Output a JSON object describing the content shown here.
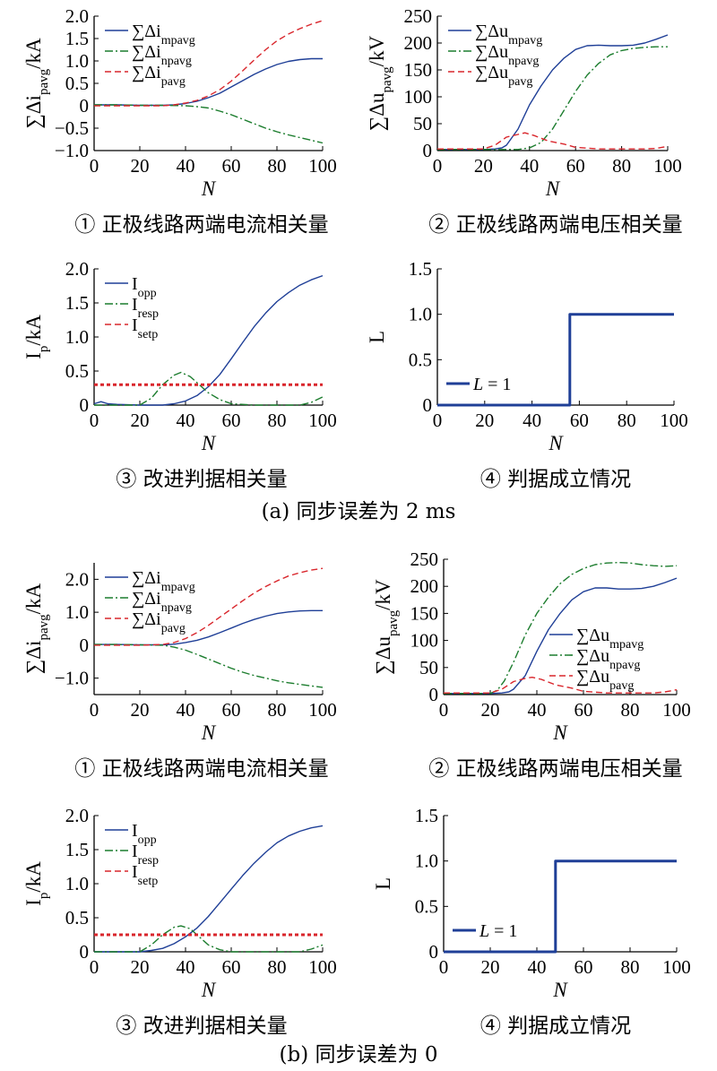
{
  "colors": {
    "blue": "#1f3f97",
    "green": "#1c7d2e",
    "red": "#d9262c",
    "black": "#000000"
  },
  "figure_captions": [
    "(a) 同步误差为 2 ms",
    "(b) 同步误差为 0"
  ],
  "chart_data": [
    {
      "type": "line",
      "id": "a1",
      "caption": "① 正极线路两端电流相关量",
      "xlabel": "N",
      "ylabel": "∑Δi_pavg/kA",
      "xlim": [
        0,
        100
      ],
      "ylim": [
        -1.0,
        2.0
      ],
      "xticks": [
        0,
        20,
        40,
        60,
        80,
        100
      ],
      "yticks": [
        -1.0,
        -0.5,
        0,
        0.5,
        1.0,
        1.5,
        2.0
      ],
      "ytick_labels": [
        "−1.0",
        "−0.5",
        "0",
        "0.5",
        "1.0",
        "1.5",
        "2.0"
      ],
      "legend": "top-left",
      "series": [
        {
          "name": "∑Δi_mpavg",
          "color": "blue",
          "style": "solid",
          "x": [
            0,
            10,
            20,
            30,
            35,
            40,
            45,
            50,
            55,
            60,
            65,
            70,
            75,
            80,
            85,
            90,
            95,
            100
          ],
          "y": [
            0.02,
            0.02,
            0.01,
            0.01,
            0.02,
            0.05,
            0.1,
            0.18,
            0.28,
            0.42,
            0.56,
            0.7,
            0.82,
            0.92,
            0.99,
            1.03,
            1.05,
            1.05
          ]
        },
        {
          "name": "∑Δi_npavg",
          "color": "green",
          "style": "dashdot",
          "x": [
            0,
            10,
            20,
            30,
            40,
            45,
            50,
            55,
            60,
            65,
            70,
            75,
            80,
            85,
            90,
            95,
            100
          ],
          "y": [
            0.02,
            0.02,
            0.01,
            0.01,
            0.0,
            -0.02,
            -0.05,
            -0.12,
            -0.2,
            -0.3,
            -0.4,
            -0.5,
            -0.58,
            -0.65,
            -0.71,
            -0.77,
            -0.83
          ]
        },
        {
          "name": "∑Δi_pavg",
          "color": "red",
          "style": "dashed",
          "x": [
            0,
            10,
            20,
            30,
            35,
            40,
            45,
            50,
            55,
            60,
            65,
            70,
            75,
            80,
            85,
            90,
            95,
            100
          ],
          "y": [
            0.0,
            0.0,
            0.0,
            0.0,
            0.02,
            0.06,
            0.12,
            0.22,
            0.36,
            0.55,
            0.78,
            1.02,
            1.25,
            1.45,
            1.6,
            1.72,
            1.82,
            1.9
          ]
        }
      ]
    },
    {
      "type": "line",
      "id": "a2",
      "caption": "② 正极线路两端电压相关量",
      "xlabel": "N",
      "ylabel": "∑Δu_pavg/kV",
      "xlim": [
        0,
        100
      ],
      "ylim": [
        0,
        250
      ],
      "xticks": [
        0,
        20,
        40,
        60,
        80,
        100
      ],
      "yticks": [
        0,
        50,
        100,
        150,
        200,
        250
      ],
      "ytick_labels": [
        "0",
        "50",
        "100",
        "150",
        "200",
        "250"
      ],
      "legend": "top-left",
      "series": [
        {
          "name": "∑Δu_mpavg",
          "color": "blue",
          "style": "solid",
          "x": [
            0,
            20,
            25,
            28,
            30,
            35,
            40,
            45,
            50,
            55,
            60,
            65,
            70,
            75,
            80,
            85,
            90,
            95,
            100
          ],
          "y": [
            2,
            2,
            3,
            5,
            10,
            40,
            85,
            120,
            150,
            172,
            188,
            195,
            196,
            195,
            195,
            196,
            200,
            207,
            215
          ]
        },
        {
          "name": "∑Δu_npavg",
          "color": "green",
          "style": "dashdot",
          "x": [
            0,
            35,
            40,
            45,
            50,
            55,
            60,
            65,
            70,
            75,
            80,
            85,
            90,
            95,
            100
          ],
          "y": [
            2,
            2,
            5,
            15,
            40,
            75,
            110,
            140,
            162,
            178,
            186,
            190,
            192,
            193,
            193
          ]
        },
        {
          "name": "∑Δu_pavg",
          "color": "red",
          "style": "dashed",
          "x": [
            0,
            20,
            25,
            30,
            35,
            38,
            42,
            48,
            55,
            60,
            70,
            80,
            90,
            95,
            100
          ],
          "y": [
            3,
            3,
            10,
            25,
            30,
            33,
            28,
            18,
            12,
            6,
            3,
            3,
            3,
            4,
            8
          ]
        }
      ]
    },
    {
      "type": "line",
      "id": "a3",
      "caption": "③ 改进判据相关量",
      "xlabel": "N",
      "ylabel": "I_p/kA",
      "xlim": [
        0,
        100
      ],
      "ylim": [
        0,
        2.0
      ],
      "xticks": [
        0,
        20,
        40,
        60,
        80,
        100
      ],
      "yticks": [
        0,
        0.5,
        1.0,
        1.5,
        2.0
      ],
      "ytick_labels": [
        "0",
        "0.5",
        "1.0",
        "1.5",
        "2.0"
      ],
      "legend": "top-left",
      "series": [
        {
          "name": "I_opp",
          "color": "blue",
          "style": "solid",
          "x": [
            0,
            3,
            6,
            10,
            20,
            30,
            35,
            40,
            45,
            50,
            55,
            60,
            65,
            70,
            75,
            80,
            85,
            90,
            95,
            100
          ],
          "y": [
            0.02,
            0.05,
            0.02,
            0.01,
            0.0,
            0.0,
            0.02,
            0.06,
            0.14,
            0.27,
            0.45,
            0.68,
            0.92,
            1.15,
            1.35,
            1.52,
            1.65,
            1.76,
            1.84,
            1.9
          ]
        },
        {
          "name": "I_resp",
          "color": "green",
          "style": "dashdot",
          "x": [
            0,
            10,
            20,
            25,
            30,
            35,
            38,
            42,
            46,
            50,
            55,
            60,
            70,
            80,
            90,
            95,
            100
          ],
          "y": [
            0.0,
            0.0,
            0.0,
            0.1,
            0.3,
            0.44,
            0.48,
            0.42,
            0.3,
            0.18,
            0.08,
            0.02,
            0.0,
            0.0,
            0.0,
            0.04,
            0.12
          ]
        },
        {
          "name": "I_setp",
          "color": "red",
          "style": "dashed",
          "x": [
            0,
            100
          ],
          "y": [
            0.3,
            0.3
          ]
        }
      ]
    },
    {
      "type": "line",
      "id": "a4",
      "caption": "④ 判据成立情况",
      "xlabel": "N",
      "ylabel": "L",
      "xlim": [
        0,
        100
      ],
      "ylim": [
        0,
        1.5
      ],
      "xticks": [
        0,
        20,
        40,
        60,
        80,
        100
      ],
      "yticks": [
        0,
        0.5,
        1.0,
        1.5
      ],
      "ytick_labels": [
        "0",
        "0.5",
        "1.0",
        "1.5"
      ],
      "legend": "bottom-left",
      "series": [
        {
          "name": "L = 1",
          "color": "blue",
          "style": "solid",
          "width": 3,
          "x": [
            0,
            56,
            56,
            100
          ],
          "y": [
            0,
            0,
            1,
            1
          ]
        }
      ]
    },
    {
      "type": "line",
      "id": "b1",
      "caption": "① 正极线路两端电流相关量",
      "xlabel": "N",
      "ylabel": "∑Δi_pavg/kA",
      "xlim": [
        0,
        100
      ],
      "ylim": [
        -1.5,
        2.5
      ],
      "xticks": [
        0,
        20,
        40,
        60,
        80,
        100
      ],
      "yticks": [
        -1.0,
        0,
        1.0,
        2.0
      ],
      "ytick_labels": [
        "−1.0",
        "0",
        "1.0",
        "2.0"
      ],
      "legend": "top-left",
      "series": [
        {
          "name": "∑Δi_mpavg",
          "color": "blue",
          "style": "solid",
          "x": [
            0,
            10,
            20,
            30,
            35,
            40,
            45,
            50,
            55,
            60,
            65,
            70,
            75,
            80,
            85,
            90,
            95,
            100
          ],
          "y": [
            0.02,
            0.02,
            0.01,
            0.01,
            0.03,
            0.08,
            0.15,
            0.25,
            0.38,
            0.52,
            0.66,
            0.78,
            0.88,
            0.96,
            1.01,
            1.04,
            1.05,
            1.05
          ]
        },
        {
          "name": "∑Δi_npavg",
          "color": "green",
          "style": "dashdot",
          "x": [
            0,
            10,
            20,
            30,
            35,
            40,
            45,
            50,
            55,
            60,
            65,
            70,
            75,
            80,
            85,
            90,
            95,
            100
          ],
          "y": [
            0.02,
            0.02,
            0.01,
            0.0,
            -0.06,
            -0.15,
            -0.28,
            -0.42,
            -0.56,
            -0.7,
            -0.82,
            -0.92,
            -1.0,
            -1.08,
            -1.14,
            -1.19,
            -1.24,
            -1.28
          ]
        },
        {
          "name": "∑Δi_pavg",
          "color": "red",
          "style": "dashed",
          "x": [
            0,
            10,
            20,
            30,
            35,
            40,
            45,
            50,
            55,
            60,
            65,
            70,
            75,
            80,
            85,
            90,
            95,
            100
          ],
          "y": [
            0.0,
            0.0,
            0.0,
            0.02,
            0.08,
            0.2,
            0.38,
            0.6,
            0.85,
            1.1,
            1.35,
            1.58,
            1.78,
            1.95,
            2.1,
            2.2,
            2.28,
            2.33
          ]
        }
      ]
    },
    {
      "type": "line",
      "id": "b2",
      "caption": "② 正极线路两端电压相关量",
      "xlabel": "N",
      "ylabel": "∑Δu_pavg/kV",
      "xlim": [
        0,
        100
      ],
      "ylim": [
        0,
        250
      ],
      "xticks": [
        0,
        20,
        40,
        60,
        80,
        100
      ],
      "yticks": [
        0,
        50,
        100,
        150,
        200,
        250
      ],
      "ytick_labels": [
        "0",
        "50",
        "100",
        "150",
        "200",
        "250"
      ],
      "legend": "bottom-right",
      "series": [
        {
          "name": "∑Δu_mpavg",
          "color": "blue",
          "style": "solid",
          "x": [
            0,
            20,
            25,
            28,
            30,
            35,
            40,
            45,
            50,
            55,
            60,
            65,
            70,
            75,
            80,
            85,
            90,
            95,
            100
          ],
          "y": [
            2,
            2,
            3,
            5,
            10,
            35,
            80,
            120,
            150,
            175,
            190,
            197,
            197,
            195,
            195,
            196,
            200,
            207,
            215
          ]
        },
        {
          "name": "∑Δu_npavg",
          "color": "green",
          "style": "dashdot",
          "x": [
            0,
            20,
            23,
            26,
            30,
            35,
            40,
            45,
            50,
            55,
            60,
            65,
            70,
            75,
            80,
            85,
            90,
            95,
            100
          ],
          "y": [
            2,
            2,
            8,
            25,
            60,
            110,
            150,
            180,
            205,
            222,
            233,
            240,
            243,
            244,
            243,
            240,
            238,
            237,
            238
          ]
        },
        {
          "name": "∑Δu_pavg",
          "color": "red",
          "style": "dashed",
          "x": [
            0,
            20,
            25,
            30,
            35,
            38,
            42,
            48,
            55,
            60,
            70,
            80,
            90,
            95,
            100
          ],
          "y": [
            3,
            3,
            10,
            24,
            30,
            32,
            28,
            18,
            12,
            6,
            3,
            3,
            3,
            5,
            9
          ]
        }
      ]
    },
    {
      "type": "line",
      "id": "b3",
      "caption": "③ 改进判据相关量",
      "xlabel": "N",
      "ylabel": "I_p/kA",
      "xlim": [
        0,
        100
      ],
      "ylim": [
        0,
        2.0
      ],
      "xticks": [
        0,
        20,
        40,
        60,
        80,
        100
      ],
      "yticks": [
        0,
        0.5,
        1.0,
        1.5,
        2.0
      ],
      "ytick_labels": [
        "0",
        "0.5",
        "1.0",
        "1.5",
        "2.0"
      ],
      "legend": "top-left",
      "series": [
        {
          "name": "I_opp",
          "color": "blue",
          "style": "solid",
          "x": [
            0,
            10,
            20,
            25,
            30,
            35,
            40,
            45,
            50,
            55,
            60,
            65,
            70,
            75,
            80,
            85,
            90,
            95,
            100
          ],
          "y": [
            0.0,
            0.0,
            0.0,
            0.02,
            0.05,
            0.12,
            0.22,
            0.35,
            0.52,
            0.72,
            0.92,
            1.12,
            1.3,
            1.46,
            1.6,
            1.7,
            1.77,
            1.82,
            1.85
          ]
        },
        {
          "name": "I_resp",
          "color": "green",
          "style": "dashdot",
          "x": [
            0,
            10,
            20,
            25,
            30,
            35,
            38,
            42,
            46,
            50,
            55,
            60,
            70,
            80,
            90,
            95,
            100
          ],
          "y": [
            0.0,
            0.0,
            0.0,
            0.1,
            0.25,
            0.36,
            0.38,
            0.34,
            0.22,
            0.1,
            0.03,
            0.0,
            0.0,
            0.0,
            0.0,
            0.04,
            0.1
          ]
        },
        {
          "name": "I_setp",
          "color": "red",
          "style": "dashed",
          "x": [
            0,
            100
          ],
          "y": [
            0.25,
            0.25
          ]
        }
      ]
    },
    {
      "type": "line",
      "id": "b4",
      "caption": "④ 判据成立情况",
      "xlabel": "N",
      "ylabel": "L",
      "xlim": [
        0,
        100
      ],
      "ylim": [
        0,
        1.5
      ],
      "xticks": [
        0,
        20,
        40,
        60,
        80,
        100
      ],
      "yticks": [
        0,
        0.5,
        1.0,
        1.5
      ],
      "ytick_labels": [
        "0",
        "0.5",
        "1.0",
        "1.5"
      ],
      "legend": "bottom-left",
      "series": [
        {
          "name": "L = 1",
          "color": "blue",
          "style": "solid",
          "width": 3,
          "x": [
            0,
            48,
            48,
            100
          ],
          "y": [
            0,
            0,
            1,
            1
          ]
        }
      ]
    }
  ]
}
